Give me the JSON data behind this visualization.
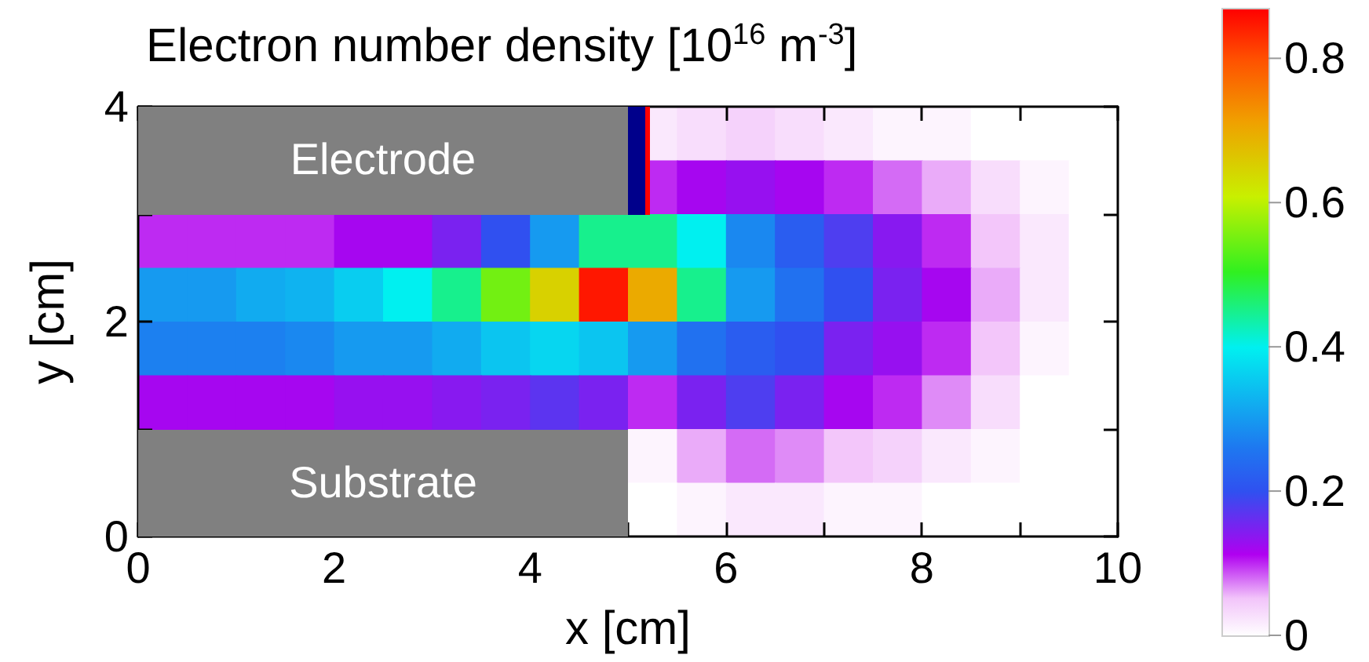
{
  "chart_data": {
    "type": "heatmap",
    "title": "Electron number density [10$^{16}$ m$^{-3}$]",
    "xlabel": "x [cm]",
    "ylabel": "y [cm]",
    "x": [
      0.25,
      0.75,
      1.25,
      1.75,
      2.25,
      2.75,
      3.25,
      3.75,
      4.25,
      4.75,
      5.25,
      5.75,
      6.25,
      6.75,
      7.25,
      7.75,
      8.25,
      8.75,
      9.25,
      9.75
    ],
    "y": [
      3.75,
      3.25,
      2.75,
      2.25,
      1.75,
      1.25,
      0.75,
      0.25
    ],
    "xlim": [
      0,
      10
    ],
    "xticks": [
      0,
      {
        "value": 1,
        "label": null
      },
      2,
      {
        "value": 3,
        "label": null
      },
      4,
      {
        "value": 5,
        "label": null
      },
      6,
      {
        "value": 7,
        "label": null
      },
      8,
      {
        "value": 9,
        "label": null
      },
      10
    ],
    "ylim": [
      0,
      4
    ],
    "yticks": [
      0,
      {
        "value": 1,
        "label": null
      },
      2,
      {
        "value": 3,
        "label": null
      },
      4
    ],
    "clim": [
      0,
      0.87
    ],
    "cticks": [
      0,
      0.2,
      0.4,
      0.6,
      0.8
    ],
    "annotations": [
      "Electrode",
      "Substrate"
    ],
    "cells": [
      [
        null,
        null,
        null,
        null,
        null,
        null,
        null,
        null,
        null,
        null,
        0.02,
        0.03,
        0.04,
        0.03,
        0.02,
        0.01,
        0.01,
        0,
        0,
        0
      ],
      [
        null,
        null,
        null,
        null,
        null,
        null,
        null,
        null,
        null,
        null,
        0.1,
        0.12,
        0.13,
        0.12,
        0.1,
        0.08,
        0.06,
        0.03,
        0.01,
        0
      ],
      [
        0.1,
        0.1,
        0.1,
        0.1,
        0.12,
        0.12,
        0.15,
        0.2,
        0.3,
        0.45,
        0.45,
        0.4,
        0.28,
        0.22,
        0.18,
        0.14,
        0.1,
        0.05,
        0.02,
        0
      ],
      [
        0.3,
        0.3,
        0.32,
        0.33,
        0.36,
        0.4,
        0.45,
        0.55,
        0.65,
        0.85,
        0.7,
        0.45,
        0.3,
        0.25,
        0.2,
        0.15,
        0.12,
        0.06,
        0.02,
        0
      ],
      [
        0.27,
        0.27,
        0.27,
        0.28,
        0.3,
        0.3,
        0.32,
        0.35,
        0.37,
        0.35,
        0.3,
        0.25,
        0.22,
        0.2,
        0.15,
        0.13,
        0.1,
        0.05,
        0.01,
        0
      ],
      [
        0.12,
        0.12,
        0.12,
        0.12,
        0.13,
        0.13,
        0.14,
        0.15,
        0.17,
        0.15,
        0.1,
        0.15,
        0.18,
        0.15,
        0.12,
        0.1,
        0.07,
        0.03,
        0,
        0
      ],
      [
        null,
        null,
        null,
        null,
        null,
        null,
        null,
        null,
        null,
        null,
        0.01,
        0.06,
        0.08,
        0.07,
        0.05,
        0.04,
        0.02,
        0.01,
        0,
        0
      ],
      [
        null,
        null,
        null,
        null,
        null,
        null,
        null,
        null,
        null,
        null,
        0,
        0.01,
        0.02,
        0.02,
        0.01,
        0.01,
        0,
        0,
        0,
        0
      ]
    ]
  }
}
